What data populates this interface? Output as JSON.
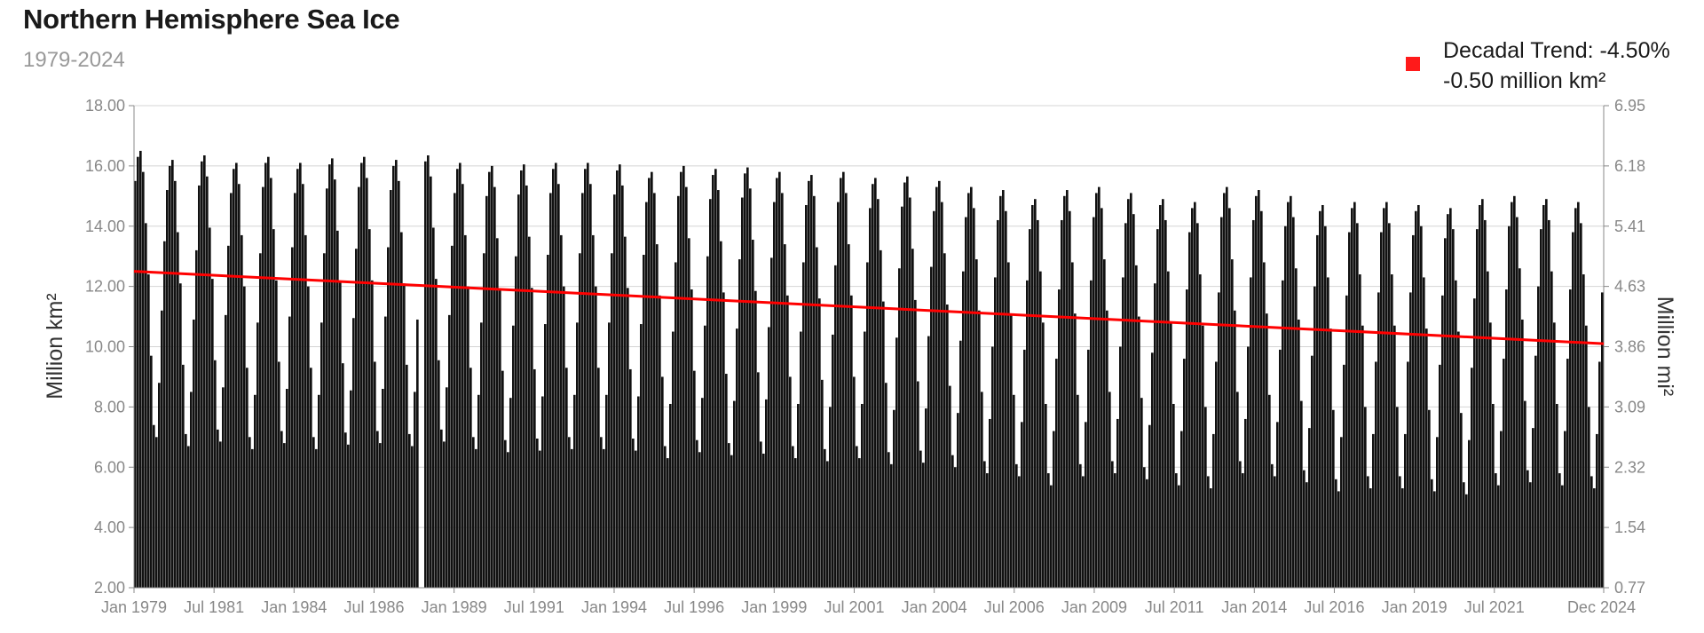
{
  "chart_data": {
    "type": "bar",
    "title": "Northern Hemisphere Sea Ice",
    "subtitle": "1979-2024",
    "ylabel_left": "Million km²",
    "ylabel_right": "Million mi²",
    "y_left_ticks": [
      "18.00",
      "16.00",
      "14.00",
      "12.00",
      "10.00",
      "8.00",
      "6.00",
      "4.00",
      "2.00"
    ],
    "y_right_ticks": [
      "6.95",
      "6.18",
      "5.41",
      "4.63",
      "3.86",
      "3.09",
      "2.32",
      "1.54",
      "0.77"
    ],
    "ylim": [
      2,
      18
    ],
    "x_range": [
      "Jan 1979",
      "Dec 2024"
    ],
    "x_tick_labels": [
      "Jan 1979",
      "Jul 1981",
      "Jan 1984",
      "Jul 1986",
      "Jan 1989",
      "Jul 1991",
      "Jan 1994",
      "Jul 1996",
      "Jan 1999",
      "Jul 2001",
      "Jan 2004",
      "Jul 2006",
      "Jan 2009",
      "Jul 2011",
      "Jan 2014",
      "Jul 2016",
      "Jan 2019",
      "Jul 2021",
      "Dec 2024"
    ],
    "grid": "horizontal",
    "legend_position": "top-right",
    "series": [
      {
        "type": "bar",
        "color": "#111111",
        "monthly_climatology_km2": [
          15.4,
          16.2,
          16.4,
          15.7,
          14.0,
          12.3,
          9.6,
          7.3,
          6.9,
          8.7,
          11.1,
          13.4
        ],
        "annual_offset_km2": [
          {
            "year": 1979,
            "value": 0.1
          },
          {
            "year": 1980,
            "value": -0.2
          },
          {
            "year": 1981,
            "value": -0.05
          },
          {
            "year": 1982,
            "value": -0.3
          },
          {
            "year": 1983,
            "value": -0.1
          },
          {
            "year": 1984,
            "value": -0.3
          },
          {
            "year": 1985,
            "value": -0.15
          },
          {
            "year": 1986,
            "value": -0.1
          },
          {
            "year": 1987,
            "value": -0.2
          },
          {
            "year": 1988,
            "value": -0.05
          },
          {
            "year": 1989,
            "value": -0.3
          },
          {
            "year": 1990,
            "value": -0.4
          },
          {
            "year": 1991,
            "value": -0.35
          },
          {
            "year": 1992,
            "value": -0.3
          },
          {
            "year": 1993,
            "value": -0.3
          },
          {
            "year": 1994,
            "value": -0.35
          },
          {
            "year": 1995,
            "value": -0.6
          },
          {
            "year": 1996,
            "value": -0.4
          },
          {
            "year": 1997,
            "value": -0.5
          },
          {
            "year": 1998,
            "value": -0.45
          },
          {
            "year": 1999,
            "value": -0.6
          },
          {
            "year": 2000,
            "value": -0.7
          },
          {
            "year": 2001,
            "value": -0.6
          },
          {
            "year": 2002,
            "value": -0.8
          },
          {
            "year": 2003,
            "value": -0.75
          },
          {
            "year": 2004,
            "value": -0.9
          },
          {
            "year": 2005,
            "value": -1.1
          },
          {
            "year": 2006,
            "value": -1.2
          },
          {
            "year": 2007,
            "value": -1.5
          },
          {
            "year": 2008,
            "value": -1.2
          },
          {
            "year": 2009,
            "value": -1.1
          },
          {
            "year": 2010,
            "value": -1.3
          },
          {
            "year": 2011,
            "value": -1.5
          },
          {
            "year": 2012,
            "value": -1.6
          },
          {
            "year": 2013,
            "value": -1.1
          },
          {
            "year": 2014,
            "value": -1.2
          },
          {
            "year": 2015,
            "value": -1.4
          },
          {
            "year": 2016,
            "value": -1.7
          },
          {
            "year": 2017,
            "value": -1.6
          },
          {
            "year": 2018,
            "value": -1.6
          },
          {
            "year": 2019,
            "value": -1.7
          },
          {
            "year": 2020,
            "value": -1.8
          },
          {
            "year": 2021,
            "value": -1.5
          },
          {
            "year": 2022,
            "value": -1.4
          },
          {
            "year": 2023,
            "value": -1.5
          },
          {
            "year": 2024,
            "value": -1.6
          }
        ],
        "data_gap": [
          "Dec 1987",
          "Jan 1988"
        ]
      },
      {
        "name": "Decadal Trend: -4.50%",
        "type": "line",
        "color": "#ff0000",
        "x": [
          "Jan 1979",
          "Dec 2024"
        ],
        "y": [
          12.5,
          10.1
        ]
      }
    ],
    "legend": {
      "color": "#ff1a1a",
      "line1": "Decadal Trend: -4.50%",
      "line2": "-0.50 million km²"
    }
  }
}
